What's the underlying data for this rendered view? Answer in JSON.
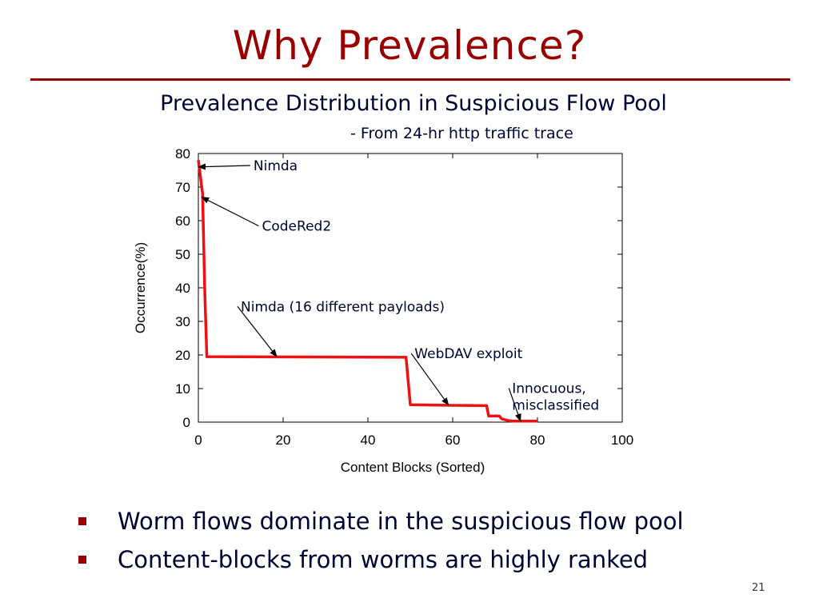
{
  "slide": {
    "title": "Why Prevalence?",
    "subtitle": "Prevalence Distribution in Suspicious Flow Pool",
    "source_note": "- From 24-hr http traffic trace",
    "bullets": [
      "Worm flows dominate in the suspicious flow pool",
      "Content-blocks from worms are highly ranked"
    ],
    "page_number": "21",
    "colors": {
      "title": "#990000",
      "rule": "#990000",
      "bullet": "#990000",
      "line": "#ee1111"
    }
  },
  "chart_data": {
    "type": "line",
    "title": "",
    "xlabel": "Content Blocks (Sorted)",
    "ylabel": "Occurrence(%)",
    "xlim": [
      0,
      100
    ],
    "ylim": [
      0,
      80
    ],
    "xticks": [
      0,
      20,
      40,
      60,
      80,
      100
    ],
    "yticks": [
      0,
      10,
      20,
      30,
      40,
      50,
      60,
      70,
      80
    ],
    "grid": false,
    "series": [
      {
        "color": "#ee1111",
        "x": [
          0,
          0.5,
          1,
          1.5,
          2,
          49,
          50,
          60,
          68,
          68.5,
          71,
          71.5,
          73,
          74,
          76,
          80
        ],
        "y": [
          78,
          73,
          68,
          40,
          19.5,
          19.3,
          5.2,
          5.0,
          4.9,
          1.8,
          1.8,
          1.0,
          0.5,
          0.3,
          0.3,
          0.3
        ]
      }
    ],
    "annotations": [
      {
        "text": "Nimda",
        "x": 13,
        "y": 75,
        "target": [
          0,
          76
        ]
      },
      {
        "text": "CodeRed2",
        "x": 15,
        "y": 57,
        "target": [
          0.8,
          67
        ]
      },
      {
        "text": "Nimda (16 different payloads)",
        "x": 10,
        "y": 33,
        "target": [
          18.5,
          19.5
        ]
      },
      {
        "text": "WebDAV exploit",
        "x": 51,
        "y": 19,
        "target": [
          59,
          5.1
        ]
      },
      {
        "text": "Innocuous,",
        "x": 74,
        "y": 8.7,
        "target": [
          76,
          0.3
        ]
      },
      {
        "text": "misclassified",
        "x": 74,
        "y": 3.7
      }
    ]
  }
}
